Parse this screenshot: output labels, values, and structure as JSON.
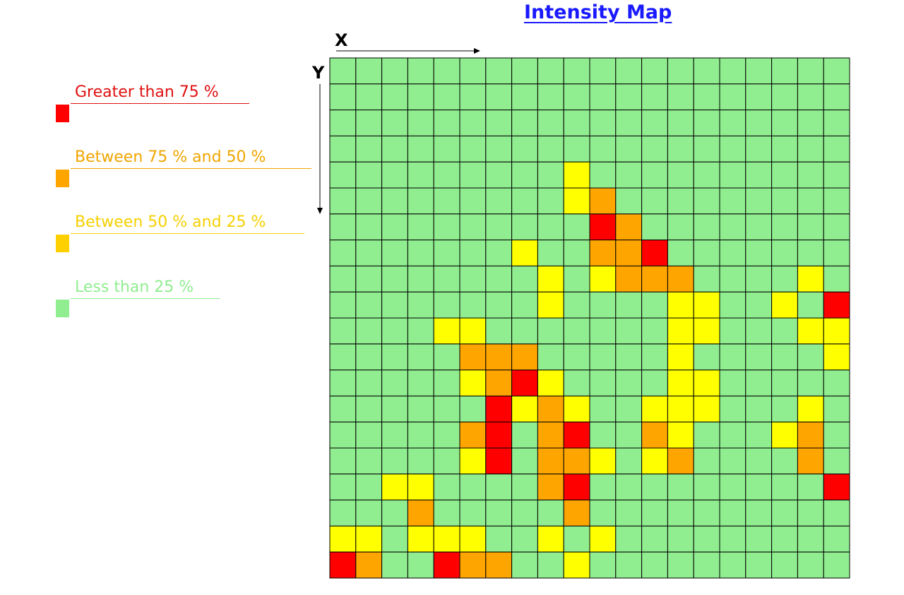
{
  "chart_data": {
    "type": "heatmap",
    "title": "Intensity Map",
    "xlabel": "X",
    "ylabel": "Y",
    "grid": true,
    "legend_position": "left",
    "colors": {
      "greater_75": "#ff0000",
      "between_75_50": "#ffa500",
      "between_50_25": "#ffff00",
      "less_25": "#90ee90"
    },
    "legend": [
      {
        "label": "Greater than 75 %",
        "text_color": "#e01010",
        "swatch": "#ff0000",
        "level": 3
      },
      {
        "label": "Between 75 % and 50 %",
        "text_color": "#f0a500",
        "swatch": "#ffa500",
        "level": 2
      },
      {
        "label": "Between 50 % and 25 %",
        "text_color": "#f5d000",
        "swatch": "#ffd000",
        "level": 1
      },
      {
        "label": "Less than 25 %",
        "text_color": "#90ee90",
        "swatch": "#90ee90",
        "level": 0
      }
    ],
    "level_colors": [
      "#90ee90",
      "#ffff00",
      "#ffa500",
      "#ff0000"
    ],
    "rows": 20,
    "cols": 20,
    "grid_values": [
      [
        0,
        0,
        0,
        0,
        0,
        0,
        0,
        0,
        0,
        0,
        0,
        0,
        0,
        0,
        0,
        0,
        0,
        0,
        0,
        0
      ],
      [
        0,
        0,
        0,
        0,
        0,
        0,
        0,
        0,
        0,
        0,
        0,
        0,
        0,
        0,
        0,
        0,
        0,
        0,
        0,
        0
      ],
      [
        0,
        0,
        0,
        0,
        0,
        0,
        0,
        0,
        0,
        0,
        0,
        0,
        0,
        0,
        0,
        0,
        0,
        0,
        0,
        0
      ],
      [
        0,
        0,
        0,
        0,
        0,
        0,
        0,
        0,
        0,
        0,
        0,
        0,
        0,
        0,
        0,
        0,
        0,
        0,
        0,
        0
      ],
      [
        0,
        0,
        0,
        0,
        0,
        0,
        0,
        0,
        0,
        1,
        0,
        0,
        0,
        0,
        0,
        0,
        0,
        0,
        0,
        0
      ],
      [
        0,
        0,
        0,
        0,
        0,
        0,
        0,
        0,
        0,
        1,
        2,
        0,
        0,
        0,
        0,
        0,
        0,
        0,
        0,
        0
      ],
      [
        0,
        0,
        0,
        0,
        0,
        0,
        0,
        0,
        0,
        0,
        3,
        2,
        0,
        0,
        0,
        0,
        0,
        0,
        0,
        0
      ],
      [
        0,
        0,
        0,
        0,
        0,
        0,
        0,
        1,
        0,
        0,
        2,
        2,
        3,
        0,
        0,
        0,
        0,
        0,
        0,
        0
      ],
      [
        0,
        0,
        0,
        0,
        0,
        0,
        0,
        0,
        1,
        0,
        1,
        2,
        2,
        2,
        0,
        0,
        0,
        0,
        1,
        0
      ],
      [
        0,
        0,
        0,
        0,
        0,
        0,
        0,
        0,
        1,
        0,
        0,
        0,
        0,
        1,
        1,
        0,
        0,
        1,
        0,
        3
      ],
      [
        0,
        0,
        0,
        0,
        1,
        1,
        0,
        0,
        0,
        0,
        0,
        0,
        0,
        1,
        1,
        0,
        0,
        0,
        1,
        1
      ],
      [
        0,
        0,
        0,
        0,
        0,
        2,
        2,
        2,
        0,
        0,
        0,
        0,
        0,
        1,
        0,
        0,
        0,
        0,
        0,
        1
      ],
      [
        0,
        0,
        0,
        0,
        0,
        1,
        2,
        3,
        1,
        0,
        0,
        0,
        0,
        1,
        1,
        0,
        0,
        0,
        0,
        0
      ],
      [
        0,
        0,
        0,
        0,
        0,
        0,
        3,
        1,
        2,
        1,
        0,
        0,
        1,
        1,
        1,
        0,
        0,
        0,
        1,
        0
      ],
      [
        0,
        0,
        0,
        0,
        0,
        2,
        3,
        0,
        2,
        3,
        0,
        0,
        2,
        1,
        0,
        0,
        0,
        1,
        2,
        0
      ],
      [
        0,
        0,
        0,
        0,
        0,
        1,
        3,
        0,
        2,
        2,
        1,
        0,
        1,
        2,
        0,
        0,
        0,
        0,
        2,
        0
      ],
      [
        0,
        0,
        1,
        1,
        0,
        0,
        0,
        0,
        2,
        3,
        0,
        0,
        0,
        0,
        0,
        0,
        0,
        0,
        0,
        3
      ],
      [
        0,
        0,
        0,
        2,
        0,
        0,
        0,
        0,
        0,
        2,
        0,
        0,
        0,
        0,
        0,
        0,
        0,
        0,
        0,
        0
      ],
      [
        1,
        1,
        0,
        1,
        1,
        1,
        0,
        0,
        1,
        0,
        1,
        0,
        0,
        0,
        0,
        0,
        0,
        0,
        0,
        0
      ],
      [
        3,
        2,
        0,
        0,
        3,
        2,
        2,
        0,
        0,
        1,
        0,
        0,
        0,
        0,
        0,
        0,
        0,
        0,
        0,
        0
      ]
    ]
  }
}
